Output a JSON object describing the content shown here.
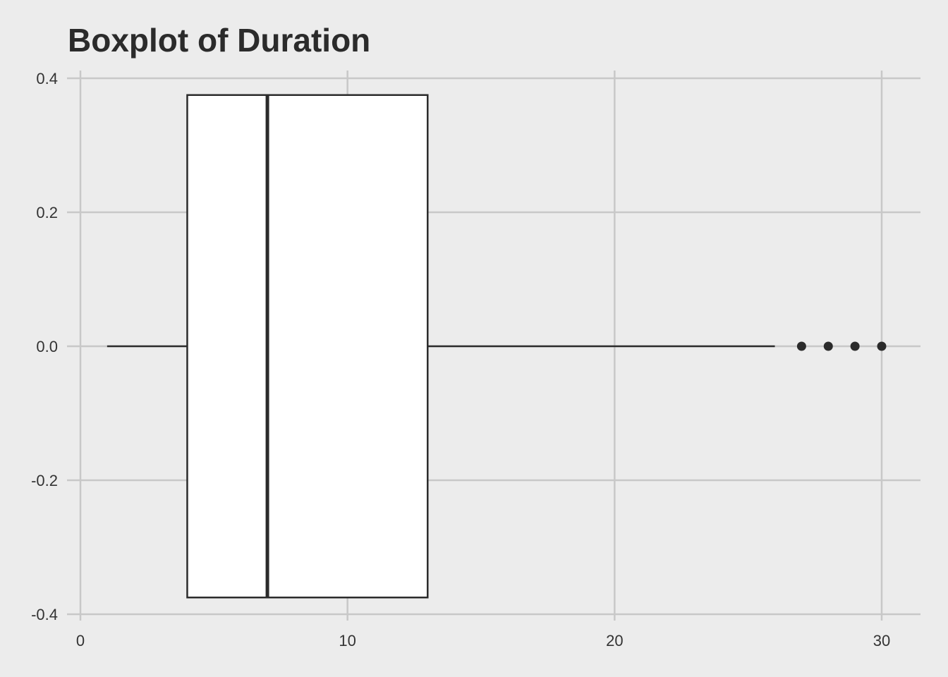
{
  "chart_data": {
    "type": "boxplot",
    "title": "Boxplot of Duration",
    "xlabel": "",
    "ylabel": "",
    "xlim": [
      -0.5,
      31.5
    ],
    "ylim": [
      -0.4,
      0.4
    ],
    "x_ticks": [
      0,
      10,
      20,
      30
    ],
    "x_tick_labels": [
      "0",
      "10",
      "20",
      "30"
    ],
    "y_ticks": [
      -0.4,
      -0.2,
      0.0,
      0.2,
      0.4
    ],
    "y_tick_labels": [
      "-0.4",
      "-0.2",
      "0.0",
      "0.2",
      "0.4"
    ],
    "grid": true,
    "box": {
      "whisker_low": 1,
      "q1": 4,
      "median": 7,
      "q3": 13,
      "whisker_high": 26,
      "outliers": [
        27,
        28,
        29,
        30
      ],
      "box_half_height": 0.375
    },
    "colors": {
      "background": "#ececec",
      "grid": "#c8c8c8",
      "box_fill": "#ffffff",
      "stroke": "#2b2b2b",
      "text": "#333333"
    }
  }
}
